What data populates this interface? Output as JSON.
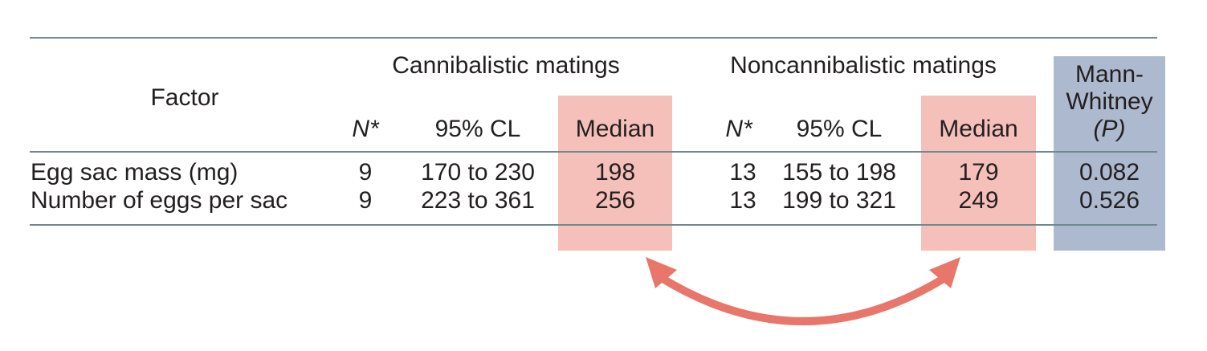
{
  "table": {
    "factor_header": "Factor",
    "groups": {
      "cannibalistic": "Cannibalistic matings",
      "noncannibalistic": "Noncannibalistic matings"
    },
    "mann_whitney_header": [
      "Mann-",
      "Whitney",
      "(P)"
    ],
    "subheaders": {
      "n": "N*",
      "ci": "95% CL",
      "median": "Median"
    },
    "rows": [
      {
        "factor": "Egg sac mass (mg)",
        "c_n": "9",
        "c_ci": "170 to 230",
        "c_median": "198",
        "nc_n": "13",
        "nc_ci": "155 to 198",
        "nc_median": "179",
        "p": "0.082"
      },
      {
        "factor": "Number of eggs per sac",
        "c_n": "9",
        "c_ci": "223 to 361",
        "c_median": "256",
        "nc_n": "13",
        "nc_ci": "199 to 321",
        "nc_median": "249",
        "p": "0.526"
      }
    ]
  },
  "colors": {
    "median_highlight": "#f5c0ba",
    "p_highlight": "#adb9cf",
    "rule": "#6e8a8f",
    "arrow": "#e8766a"
  }
}
